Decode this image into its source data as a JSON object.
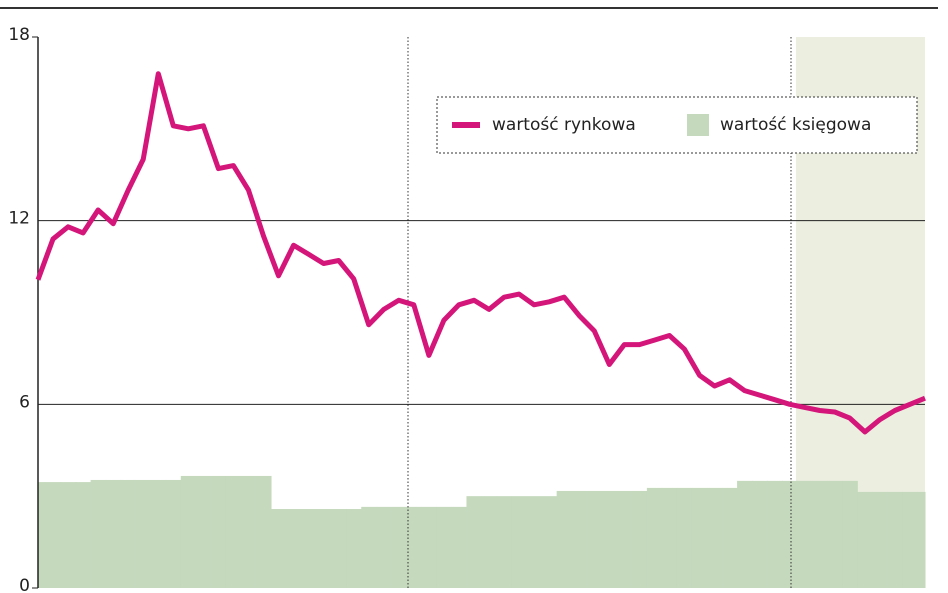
{
  "chart_data": {
    "type": "line",
    "categories": [
      null,
      null,
      null,
      null,
      null,
      null,
      null,
      null,
      null,
      null,
      null,
      null,
      null,
      null,
      null,
      null,
      null,
      null,
      null,
      null,
      null,
      null,
      null,
      null,
      null,
      null,
      null,
      null,
      null,
      null,
      null,
      null,
      null,
      null,
      null,
      null,
      null,
      null,
      null,
      null,
      null,
      null,
      null,
      null,
      null,
      null,
      null,
      null,
      null,
      null,
      null,
      null,
      null,
      null,
      null,
      null,
      null,
      null,
      null,
      null
    ],
    "series": [
      {
        "name": "wartość rynkowa",
        "color": "#d4157a",
        "style": "line",
        "values": [
          10.07,
          11.4,
          11.8,
          11.6,
          12.35,
          11.9,
          13.0,
          14.0,
          16.8,
          15.1,
          15.0,
          15.1,
          13.7,
          13.8,
          13.0,
          11.5,
          10.2,
          11.2,
          10.9,
          10.6,
          10.7,
          10.1,
          8.6,
          9.1,
          9.4,
          9.25,
          7.6,
          8.75,
          9.25,
          9.4,
          9.1,
          9.5,
          9.6,
          9.25,
          9.35,
          9.5,
          8.9,
          8.4,
          7.3,
          7.95,
          7.95,
          8.1,
          8.25,
          7.8,
          6.95,
          6.6,
          6.8,
          6.45,
          6.3,
          6.15,
          6.0,
          5.9,
          5.8,
          5.75,
          5.55,
          5.1,
          5.5,
          5.8,
          6.0,
          6.2
        ]
      },
      {
        "name": "wartość księgowa",
        "color": "#c5d9bd",
        "style": "step-area",
        "values": [
          3.46,
          3.46,
          3.46,
          3.46,
          3.53,
          3.53,
          3.53,
          3.53,
          3.53,
          3.53,
          3.66,
          3.66,
          3.66,
          3.66,
          3.66,
          3.66,
          2.58,
          2.58,
          2.58,
          2.58,
          2.58,
          2.58,
          2.65,
          2.65,
          2.65,
          2.65,
          2.65,
          2.65,
          2.65,
          3.0,
          3.0,
          3.0,
          3.0,
          3.0,
          3.0,
          3.17,
          3.17,
          3.17,
          3.17,
          3.17,
          3.17,
          3.27,
          3.27,
          3.27,
          3.27,
          3.27,
          3.27,
          3.5,
          3.5,
          3.5,
          3.5,
          3.5,
          3.5,
          3.5,
          3.5,
          3.14,
          3.14,
          3.14,
          3.14,
          3.14
        ]
      }
    ],
    "ylim": [
      0,
      18
    ],
    "yticks": [
      0,
      6,
      12,
      18
    ],
    "grid": true,
    "legend": "upper right"
  }
}
